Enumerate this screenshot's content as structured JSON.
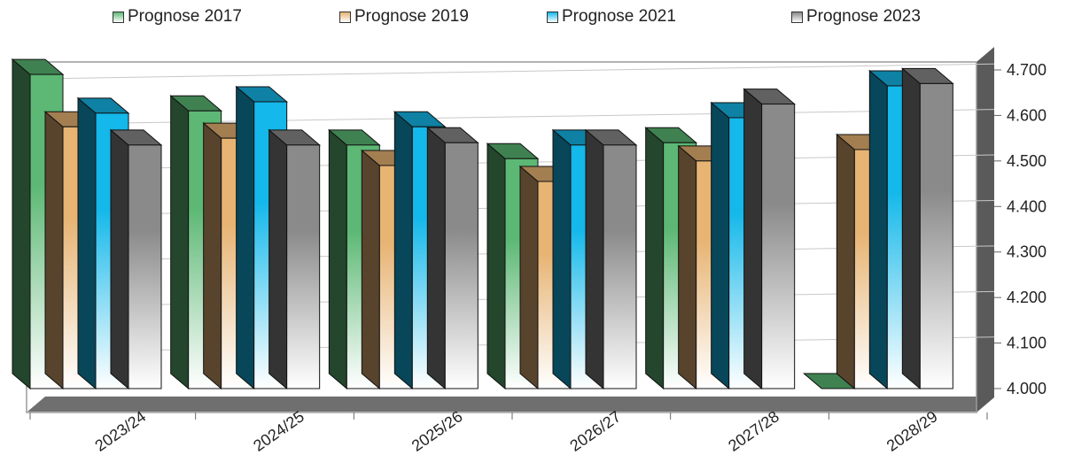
{
  "chart_data": {
    "type": "bar",
    "title": "",
    "xlabel": "",
    "ylabel": "",
    "categories": [
      "2023/24",
      "2024/25",
      "2025/26",
      "2026/27",
      "2027/28",
      "2028/29"
    ],
    "series": [
      {
        "name": "Prognose 2017",
        "color": "#5cb874",
        "values": [
          4690,
          4610,
          4535,
          4505,
          4540,
          4000
        ]
      },
      {
        "name": "Prognose 2019",
        "color": "#e7b474",
        "values": [
          4575,
          4550,
          4490,
          4455,
          4500,
          4525
        ]
      },
      {
        "name": "Prognose 2021",
        "color": "#14b8ea",
        "values": [
          4605,
          4630,
          4575,
          4535,
          4595,
          4665
        ]
      },
      {
        "name": "Prognose 2023",
        "color": "#8a8a8a",
        "values": [
          4535,
          4535,
          4540,
          4535,
          4625,
          4670
        ]
      }
    ],
    "ylim": [
      4000,
      4700
    ],
    "yticks": [
      "4.000",
      "4.100",
      "4.200",
      "4.300",
      "4.400",
      "4.500",
      "4.600",
      "4.700"
    ],
    "grid": true,
    "legend_position": "top"
  }
}
